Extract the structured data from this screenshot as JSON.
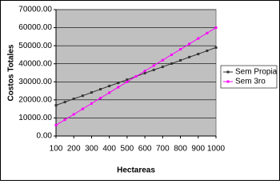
{
  "chart_data": {
    "type": "line",
    "x_label": "Hectareas",
    "y_label": "Costos Totales",
    "x": [
      100,
      150,
      200,
      250,
      300,
      350,
      400,
      450,
      500,
      550,
      600,
      650,
      700,
      750,
      800,
      850,
      900,
      950,
      1000
    ],
    "series": [
      {
        "name": "Sem Propia",
        "color": "#333333",
        "values": [
          17000,
          18800,
          20600,
          22300,
          24100,
          25900,
          27700,
          29400,
          31200,
          33000,
          34800,
          36600,
          38300,
          40100,
          41900,
          43700,
          45400,
          47200,
          49000
        ]
      },
      {
        "name": "Sem 3ro",
        "color": "#ff00ff",
        "values": [
          6000,
          9000,
          12000,
          15000,
          18000,
          21000,
          24000,
          27000,
          30000,
          33000,
          36000,
          39000,
          42000,
          45000,
          48000,
          51000,
          54000,
          57000,
          60000
        ]
      }
    ],
    "xlim": [
      100,
      1000
    ],
    "xticks": [
      100,
      200,
      300,
      400,
      500,
      600,
      700,
      800,
      900,
      1000
    ],
    "ylim": [
      0,
      70000
    ],
    "yticks": [
      {
        "value": 0,
        "label": "0.00"
      },
      {
        "value": 10000,
        "label": "10000.00"
      },
      {
        "value": 20000,
        "label": "20000.00"
      },
      {
        "value": 30000,
        "label": "30000.00"
      },
      {
        "value": 40000,
        "label": "40000.00"
      },
      {
        "value": 50000,
        "label": "50000.00"
      },
      {
        "value": 60000,
        "label": "60000.00"
      },
      {
        "value": 70000,
        "label": "70000.00"
      }
    ],
    "grid": true,
    "legend": "right",
    "plot_background": "#c0c0c0"
  }
}
